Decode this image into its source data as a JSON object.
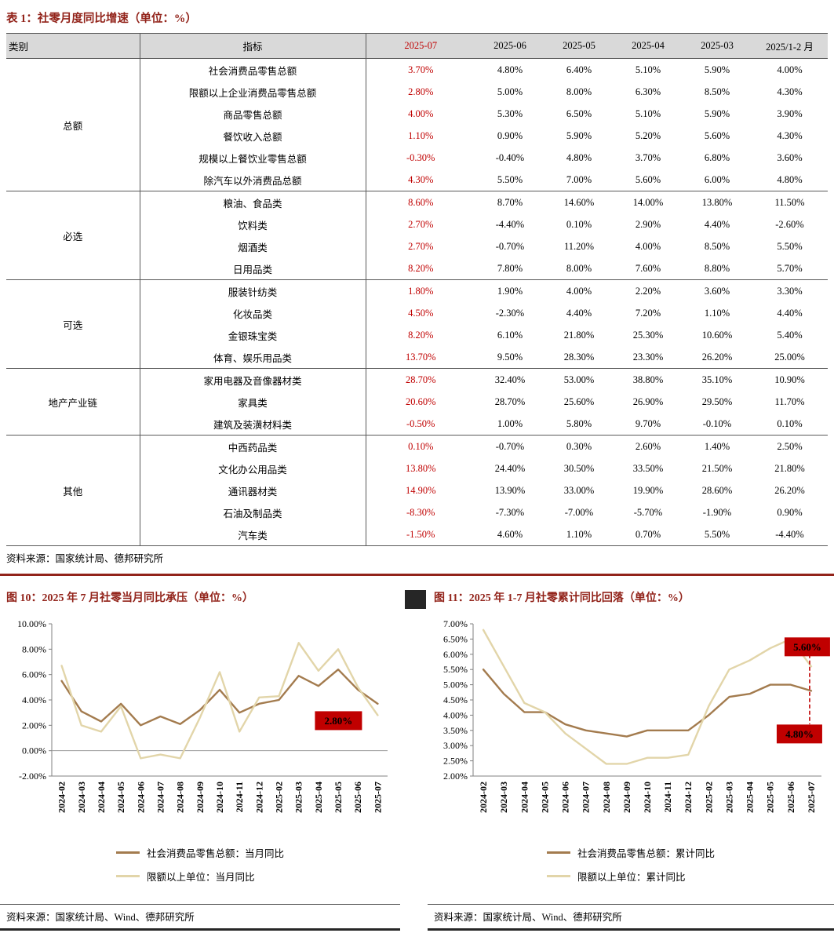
{
  "colors": {
    "accent": "#92231A",
    "highlight_red": "#C00000",
    "series_dark": "#A37B4E",
    "series_light": "#E2D5A9",
    "table_header_bg": "#D9D9D9"
  },
  "table": {
    "title": "表 1：社零月度同比增速（单位：%）",
    "headers": [
      "类别",
      "指标",
      "2025-07",
      "2025-06",
      "2025-05",
      "2025-04",
      "2025-03",
      "2025/1-2 月"
    ],
    "highlight_col_index": 2,
    "groups": [
      {
        "name": "总额",
        "rows": [
          {
            "indicator": "社会消费品零售总额",
            "values": [
              "3.70%",
              "4.80%",
              "6.40%",
              "5.10%",
              "5.90%",
              "4.00%"
            ]
          },
          {
            "indicator": "限额以上企业消费品零售总额",
            "values": [
              "2.80%",
              "5.00%",
              "8.00%",
              "6.30%",
              "8.50%",
              "4.30%"
            ]
          },
          {
            "indicator": "商品零售总额",
            "values": [
              "4.00%",
              "5.30%",
              "6.50%",
              "5.10%",
              "5.90%",
              "3.90%"
            ]
          },
          {
            "indicator": "餐饮收入总额",
            "values": [
              "1.10%",
              "0.90%",
              "5.90%",
              "5.20%",
              "5.60%",
              "4.30%"
            ]
          },
          {
            "indicator": "规模以上餐饮业零售总额",
            "values": [
              "-0.30%",
              "-0.40%",
              "4.80%",
              "3.70%",
              "6.80%",
              "3.60%"
            ]
          },
          {
            "indicator": "除汽车以外消费品总额",
            "values": [
              "4.30%",
              "5.50%",
              "7.00%",
              "5.60%",
              "6.00%",
              "4.80%"
            ]
          }
        ]
      },
      {
        "name": "必选",
        "rows": [
          {
            "indicator": "粮油、食品类",
            "values": [
              "8.60%",
              "8.70%",
              "14.60%",
              "14.00%",
              "13.80%",
              "11.50%"
            ]
          },
          {
            "indicator": "饮料类",
            "values": [
              "2.70%",
              "-4.40%",
              "0.10%",
              "2.90%",
              "4.40%",
              "-2.60%"
            ]
          },
          {
            "indicator": "烟酒类",
            "values": [
              "2.70%",
              "-0.70%",
              "11.20%",
              "4.00%",
              "8.50%",
              "5.50%"
            ]
          },
          {
            "indicator": "日用品类",
            "values": [
              "8.20%",
              "7.80%",
              "8.00%",
              "7.60%",
              "8.80%",
              "5.70%"
            ]
          }
        ]
      },
      {
        "name": "可选",
        "rows": [
          {
            "indicator": "服装针纺类",
            "values": [
              "1.80%",
              "1.90%",
              "4.00%",
              "2.20%",
              "3.60%",
              "3.30%"
            ]
          },
          {
            "indicator": "化妆品类",
            "values": [
              "4.50%",
              "-2.30%",
              "4.40%",
              "7.20%",
              "1.10%",
              "4.40%"
            ]
          },
          {
            "indicator": "金银珠宝类",
            "values": [
              "8.20%",
              "6.10%",
              "21.80%",
              "25.30%",
              "10.60%",
              "5.40%"
            ]
          },
          {
            "indicator": "体育、娱乐用品类",
            "values": [
              "13.70%",
              "9.50%",
              "28.30%",
              "23.30%",
              "26.20%",
              "25.00%"
            ]
          }
        ]
      },
      {
        "name": "地产产业链",
        "rows": [
          {
            "indicator": "家用电器及音像器材类",
            "values": [
              "28.70%",
              "32.40%",
              "53.00%",
              "38.80%",
              "35.10%",
              "10.90%"
            ]
          },
          {
            "indicator": "家具类",
            "values": [
              "20.60%",
              "28.70%",
              "25.60%",
              "26.90%",
              "29.50%",
              "11.70%"
            ]
          },
          {
            "indicator": "建筑及装潢材料类",
            "values": [
              "-0.50%",
              "1.00%",
              "5.80%",
              "9.70%",
              "-0.10%",
              "0.10%"
            ]
          }
        ]
      },
      {
        "name": "其他",
        "rows": [
          {
            "indicator": "中西药品类",
            "values": [
              "0.10%",
              "-0.70%",
              "0.30%",
              "2.60%",
              "1.40%",
              "2.50%"
            ]
          },
          {
            "indicator": "文化办公用品类",
            "values": [
              "13.80%",
              "24.40%",
              "30.50%",
              "33.50%",
              "21.50%",
              "21.80%"
            ]
          },
          {
            "indicator": "通讯器材类",
            "values": [
              "14.90%",
              "13.90%",
              "33.00%",
              "19.90%",
              "28.60%",
              "26.20%"
            ]
          },
          {
            "indicator": "石油及制品类",
            "values": [
              "-8.30%",
              "-7.30%",
              "-7.00%",
              "-5.70%",
              "-1.90%",
              "0.90%"
            ]
          },
          {
            "indicator": "汽车类",
            "values": [
              "-1.50%",
              "4.60%",
              "1.10%",
              "0.70%",
              "5.50%",
              "-4.40%"
            ]
          }
        ]
      }
    ],
    "source": "资料来源：国家统计局、德邦研究所"
  },
  "figures": [
    {
      "title": "图 10：2025 年 7 月社零当月同比承压（单位：%）",
      "source": "资料来源：国家统计局、Wind、德邦研究所"
    },
    {
      "title": "图 11：2025 年 1-7 月社零累计同比回落（单位：%）",
      "source": "资料来源：国家统计局、Wind、德邦研究所"
    }
  ],
  "chart_data": [
    {
      "type": "line",
      "title": "图 10：2025 年 7 月社零当月同比承压（单位：%）",
      "x": [
        "2024-02",
        "2024-03",
        "2024-04",
        "2024-05",
        "2024-06",
        "2024-07",
        "2024-08",
        "2024-09",
        "2024-10",
        "2024-11",
        "2024-12",
        "2025-02",
        "2025-03",
        "2025-04",
        "2025-05",
        "2025-06",
        "2025-07"
      ],
      "series": [
        {
          "name": "社会消费品零售总额：当月同比",
          "color": "#A37B4E",
          "values": [
            5.5,
            3.1,
            2.3,
            3.7,
            2.0,
            2.7,
            2.1,
            3.2,
            4.8,
            3.0,
            3.7,
            4.0,
            5.9,
            5.1,
            6.4,
            4.8,
            3.7
          ]
        },
        {
          "name": "限额以上单位：当月同比",
          "color": "#E2D5A9",
          "values": [
            6.7,
            2.0,
            1.5,
            3.5,
            -0.6,
            -0.3,
            -0.6,
            2.6,
            6.2,
            1.5,
            4.2,
            4.3,
            8.5,
            6.3,
            8.0,
            5.0,
            2.8
          ]
        }
      ],
      "ylim": [
        -2,
        10
      ],
      "ytick_step": 2,
      "y_format": "0.00%",
      "grid": false,
      "legend_position": "bottom",
      "callouts": [
        {
          "label": "2.80%",
          "x": "2025-07",
          "value": 2.8
        }
      ]
    },
    {
      "type": "line",
      "title": "图 11：2025 年 1-7 月社零累计同比回落（单位：%）",
      "x": [
        "2024-02",
        "2024-03",
        "2024-04",
        "2024-05",
        "2024-06",
        "2024-07",
        "2024-08",
        "2024-09",
        "2024-10",
        "2024-11",
        "2024-12",
        "2025-02",
        "2025-03",
        "2025-04",
        "2025-05",
        "2025-06",
        "2025-07"
      ],
      "series": [
        {
          "name": "社会消费品零售总额：累计同比",
          "color": "#A37B4E",
          "values": [
            5.5,
            4.7,
            4.1,
            4.1,
            3.7,
            3.5,
            3.4,
            3.3,
            3.5,
            3.5,
            3.5,
            4.0,
            4.6,
            4.7,
            5.0,
            5.0,
            4.8
          ]
        },
        {
          "name": "限额以上单位：累计同比",
          "color": "#E2D5A9",
          "values": [
            6.8,
            5.6,
            4.4,
            4.1,
            3.4,
            2.9,
            2.4,
            2.4,
            2.6,
            2.6,
            2.7,
            4.3,
            5.5,
            5.8,
            6.2,
            6.5,
            5.6
          ]
        }
      ],
      "ylim": [
        2,
        7
      ],
      "ytick_step": 0.5,
      "y_format": "0.00%",
      "grid": false,
      "legend_position": "bottom",
      "callouts": [
        {
          "label": "5.60%",
          "x": "2025-07",
          "value": 5.6
        },
        {
          "label": "4.80%",
          "x": "2025-07",
          "value": 4.8
        }
      ],
      "connector": {
        "x": "2025-07",
        "from": 6.0,
        "to": 3.7
      }
    }
  ]
}
